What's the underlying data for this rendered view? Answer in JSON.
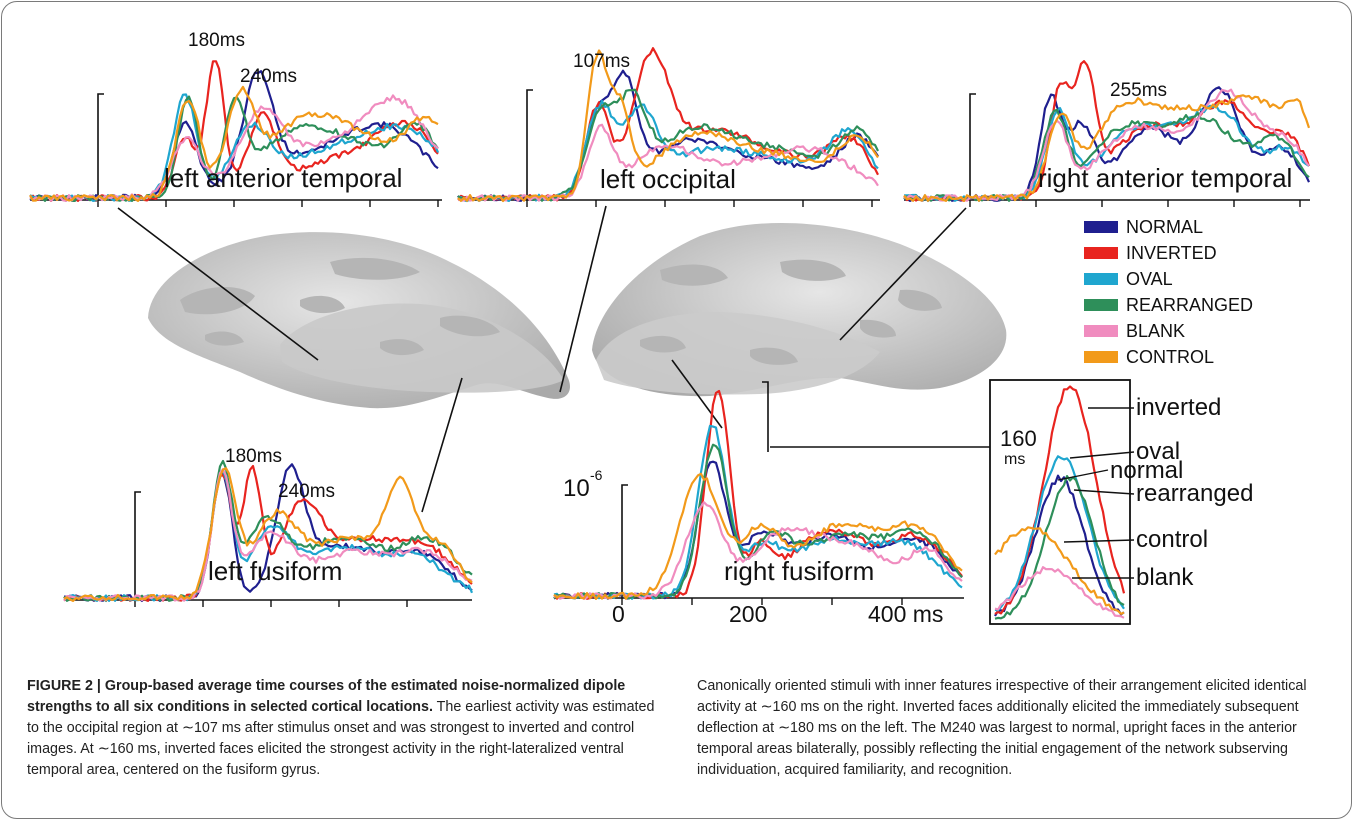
{
  "figure": {
    "panels": {
      "left_anterior_temporal": {
        "label": "left anterior temporal",
        "peak1": "180ms",
        "peak2": "240ms"
      },
      "left_occipital": {
        "label": "left occipital",
        "peak1": "107ms"
      },
      "right_anterior_temporal": {
        "label": "right anterior temporal",
        "peak1": "255ms"
      },
      "left_fusiform": {
        "label": "left fusiform",
        "peak1": "180ms",
        "peak2": "240ms"
      },
      "right_fusiform": {
        "label": "right fusiform",
        "scale": "10",
        "scale_exp": "-6",
        "tick0": "0",
        "tick200": "200",
        "tick400": "400 ms"
      },
      "inset": {
        "time_top": "160",
        "time_bottom": "ms",
        "labels": [
          "inverted",
          "oval",
          "normal",
          "rearranged",
          "control",
          "blank"
        ]
      }
    },
    "legend": [
      {
        "name": "NORMAL",
        "color": "#1f1f8f"
      },
      {
        "name": "INVERTED",
        "color": "#e8241f"
      },
      {
        "name": "OVAL",
        "color": "#1fa6cf"
      },
      {
        "name": "REARRANGED",
        "color": "#2e8f5a"
      },
      {
        "name": "BLANK",
        "color": "#f08cbf"
      },
      {
        "name": "CONTROL",
        "color": "#f29a1a"
      }
    ]
  },
  "caption": {
    "heading": "FIGURE 2 | Group-based average time courses of the estimated noise-normalized dipole strengths to all six conditions in selected cortical locations.",
    "left_text": " The earliest activity was estimated to the occipital region at ∼107 ms after stimulus onset and was strongest to inverted and control images. At ∼160 ms, inverted faces elicited the strongest activity in the right-lateralized ventral temporal area, centered on the fusiform gyrus.",
    "right_text": "Canonically oriented stimuli with inner features irrespective of their arrangement elicited identical activity at ∼160 ms on the right. Inverted faces additionally elicited the immediately subsequent deflection at ∼180 ms on the left. The M240 was largest to normal, upright faces in the anterior temporal areas bilaterally, possibly reflecting the initial engagement of the network subserving individuation, acquired familiarity, and recognition."
  }
}
